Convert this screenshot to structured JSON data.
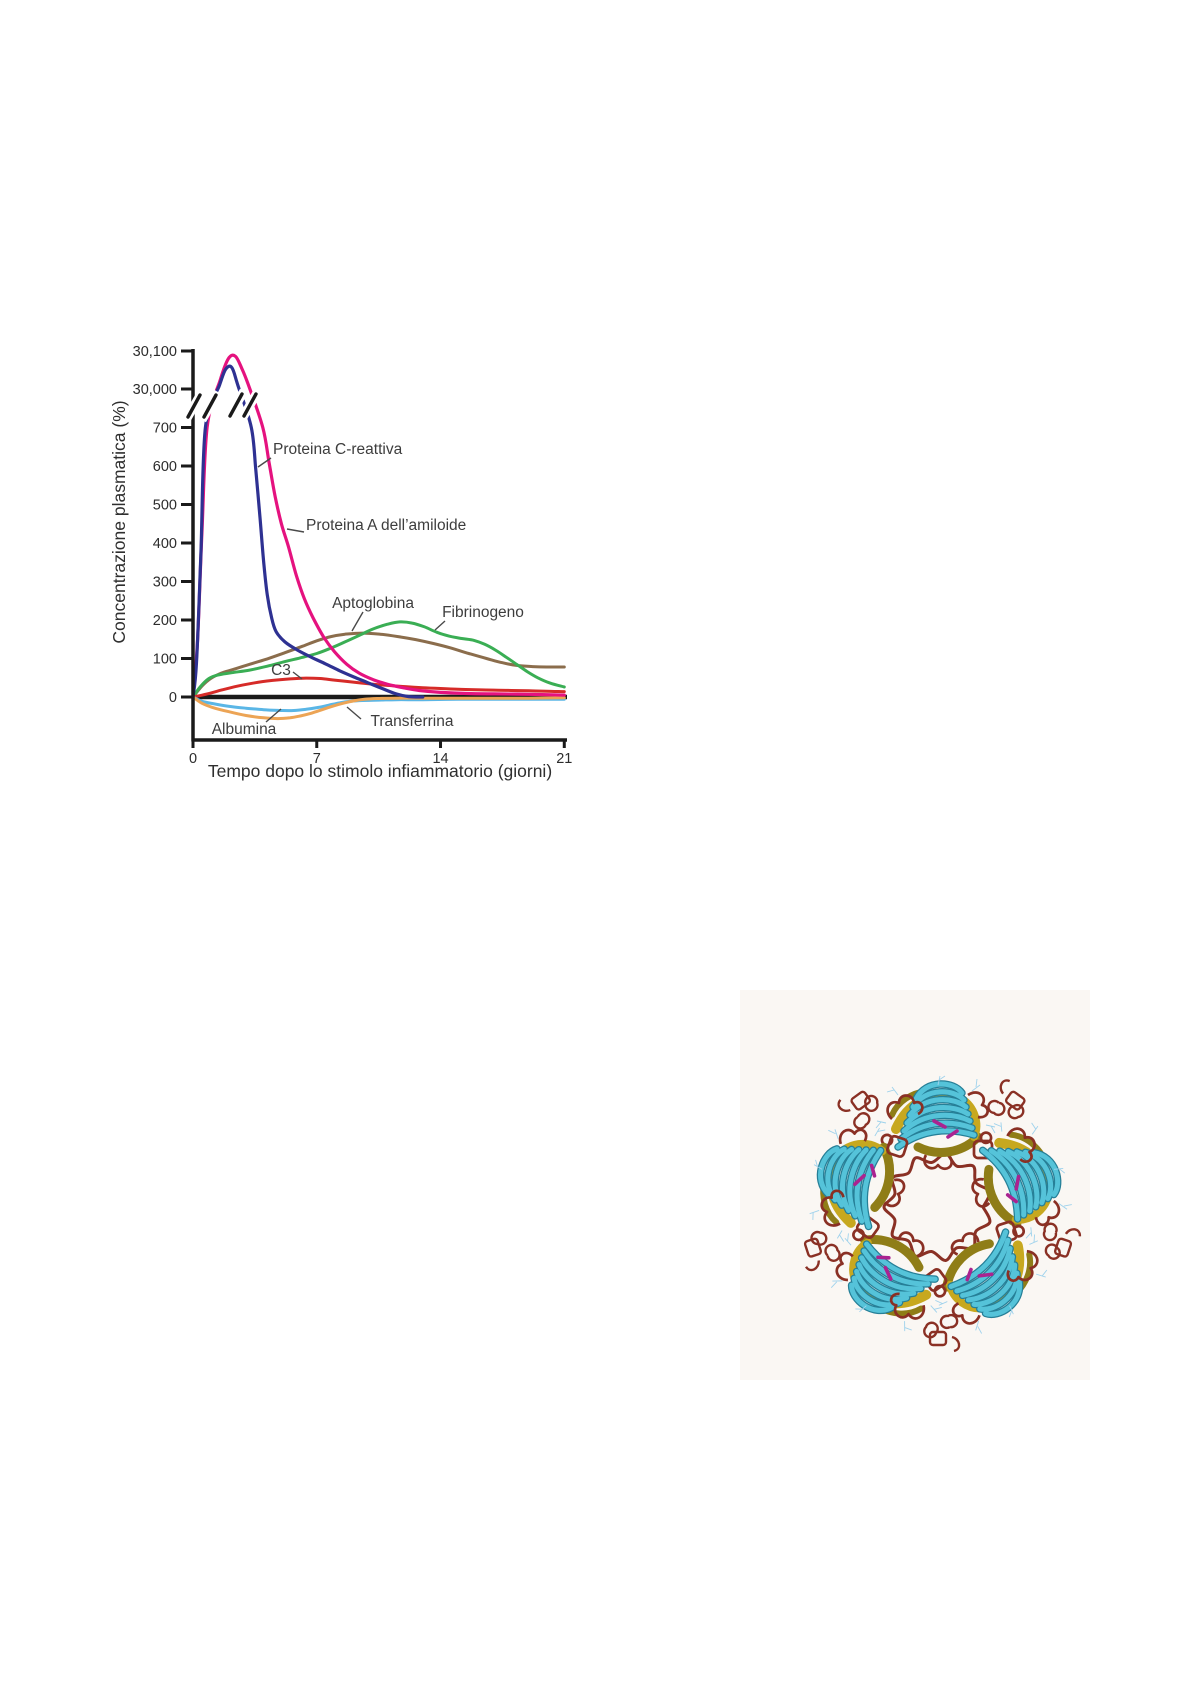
{
  "page": {
    "background": "#ffffff"
  },
  "chart_data": {
    "type": "line",
    "title": "",
    "xlabel": "Tempo dopo lo stimolo infiammatorio (giorni)",
    "ylabel": "Concentrazione plasmatica (%)",
    "x_ticks": [
      0,
      7,
      14,
      21
    ],
    "y_ticks_lower": [
      0,
      100,
      200,
      300,
      400,
      500,
      600,
      700
    ],
    "y_ticks_upper": [
      {
        "value": 30000,
        "label": "30,000"
      },
      {
        "value": 30100,
        "label": "30,100"
      }
    ],
    "axis_break": true,
    "x_range_days": [
      0,
      21
    ],
    "y_range_lower": [
      -110,
      720
    ],
    "y_range_upper": [
      30000,
      30100
    ],
    "grid": false,
    "legend": "inline-annotations",
    "series": [
      {
        "name": "Aptoglobina",
        "color": "#8b6d4c",
        "points": [
          [
            0,
            0
          ],
          [
            0.5,
            28
          ],
          [
            1,
            48
          ],
          [
            1.6,
            62
          ],
          [
            2.3,
            72
          ],
          [
            3.2,
            85
          ],
          [
            4.2,
            99
          ],
          [
            5.2,
            115
          ],
          [
            6.2,
            132
          ],
          [
            7,
            146
          ],
          [
            7.8,
            157
          ],
          [
            8.6,
            163
          ],
          [
            9.6,
            166
          ],
          [
            10.6,
            163
          ],
          [
            11.6,
            157
          ],
          [
            12.6,
            149
          ],
          [
            13.6,
            139
          ],
          [
            14.6,
            127
          ],
          [
            15.6,
            113
          ],
          [
            16.6,
            100
          ],
          [
            17.5,
            89
          ],
          [
            18.3,
            82
          ],
          [
            19.2,
            79
          ],
          [
            20,
            78
          ],
          [
            21,
            78
          ]
        ]
      },
      {
        "name": "Fibrinogeno",
        "color": "#3aae54",
        "points": [
          [
            0,
            0
          ],
          [
            0.4,
            26
          ],
          [
            0.9,
            48
          ],
          [
            1.4,
            57
          ],
          [
            2.2,
            63
          ],
          [
            3.2,
            70
          ],
          [
            4.2,
            80
          ],
          [
            5.2,
            92
          ],
          [
            6.2,
            103
          ],
          [
            7,
            113
          ],
          [
            7.8,
            127
          ],
          [
            8.6,
            143
          ],
          [
            9.4,
            160
          ],
          [
            10.2,
            177
          ],
          [
            11,
            189
          ],
          [
            11.7,
            195
          ],
          [
            12.4,
            192
          ],
          [
            13.1,
            182
          ],
          [
            13.8,
            168
          ],
          [
            14.5,
            158
          ],
          [
            15.2,
            152
          ],
          [
            15.9,
            147
          ],
          [
            16.5,
            137
          ],
          [
            17.1,
            122
          ],
          [
            17.7,
            104
          ],
          [
            18.3,
            85
          ],
          [
            18.9,
            66
          ],
          [
            19.5,
            50
          ],
          [
            20.2,
            36
          ],
          [
            21,
            26
          ]
        ]
      },
      {
        "name": "C3",
        "color": "#d62b28",
        "points": [
          [
            0,
            0
          ],
          [
            0.8,
            8
          ],
          [
            1.6,
            18
          ],
          [
            2.5,
            28
          ],
          [
            3.5,
            37
          ],
          [
            4.5,
            43
          ],
          [
            5.5,
            47
          ],
          [
            6.4,
            49
          ],
          [
            7.2,
            48
          ],
          [
            8,
            44
          ],
          [
            9,
            39
          ],
          [
            10,
            34
          ],
          [
            11,
            30
          ],
          [
            12,
            27
          ],
          [
            13,
            24
          ],
          [
            14,
            22
          ],
          [
            15,
            20
          ],
          [
            16,
            19
          ],
          [
            17,
            18
          ],
          [
            18,
            17
          ],
          [
            19,
            16
          ],
          [
            20,
            15
          ],
          [
            21,
            14
          ]
        ]
      },
      {
        "name": "Albumina",
        "color": "#5ab6e6",
        "points": [
          [
            0,
            0
          ],
          [
            0.5,
            -11
          ],
          [
            1.1,
            -17
          ],
          [
            2,
            -24
          ],
          [
            3,
            -29
          ],
          [
            4,
            -33
          ],
          [
            5,
            -35
          ],
          [
            5.7,
            -35
          ],
          [
            6.4,
            -32
          ],
          [
            7.1,
            -27
          ],
          [
            7.7,
            -21
          ],
          [
            8.3,
            -15
          ],
          [
            8.9,
            -11
          ],
          [
            9.6,
            -9
          ],
          [
            10.5,
            -8
          ],
          [
            11.5,
            -7
          ],
          [
            13,
            -7
          ],
          [
            15,
            -6
          ],
          [
            17,
            -6
          ],
          [
            19,
            -6
          ],
          [
            21,
            -6
          ]
        ]
      },
      {
        "name": "Transferrina",
        "color": "#eca455",
        "points": [
          [
            0,
            0
          ],
          [
            0.5,
            -16
          ],
          [
            1.1,
            -27
          ],
          [
            2,
            -38
          ],
          [
            3,
            -48
          ],
          [
            4,
            -54
          ],
          [
            4.8,
            -56
          ],
          [
            5.5,
            -54
          ],
          [
            6.1,
            -49
          ],
          [
            6.7,
            -42
          ],
          [
            7.3,
            -33
          ],
          [
            7.9,
            -24
          ],
          [
            8.5,
            -16
          ],
          [
            9.1,
            -10
          ],
          [
            9.7,
            -6
          ],
          [
            10.4,
            -4
          ],
          [
            11.5,
            -3
          ],
          [
            13,
            -3
          ],
          [
            15,
            -3
          ],
          [
            17,
            -3
          ],
          [
            19,
            -3
          ],
          [
            21,
            -2
          ]
        ]
      },
      {
        "name": "Proteina A dell’amiloide",
        "color": "#e5127f",
        "points": [
          [
            0,
            0
          ],
          [
            0.25,
            140
          ],
          [
            0.5,
            420
          ],
          [
            0.8,
            700
          ],
          [
            1.55,
            30025
          ],
          [
            2,
            30080
          ],
          [
            2.4,
            30086
          ],
          [
            2.8,
            30050
          ],
          [
            3.2,
            30002
          ],
          [
            3.95,
            700
          ],
          [
            4.3,
            610
          ],
          [
            4.65,
            520
          ],
          [
            5,
            450
          ],
          [
            5.4,
            390
          ],
          [
            5.85,
            315
          ],
          [
            6.3,
            255
          ],
          [
            6.8,
            205
          ],
          [
            7.4,
            155
          ],
          [
            8,
            118
          ],
          [
            8.7,
            85
          ],
          [
            9.4,
            62
          ],
          [
            10.2,
            45
          ],
          [
            11,
            33
          ],
          [
            11.9,
            24
          ],
          [
            12.8,
            17
          ],
          [
            14,
            12
          ],
          [
            15.5,
            9
          ],
          [
            17,
            8
          ],
          [
            19,
            7
          ],
          [
            21,
            5
          ]
        ]
      },
      {
        "name": "Proteina C-reattiva",
        "color": "#2e3192",
        "points": [
          [
            0,
            0
          ],
          [
            0.2,
            90
          ],
          [
            0.45,
            380
          ],
          [
            0.7,
            700
          ],
          [
            1.5,
            30010
          ],
          [
            1.85,
            30052
          ],
          [
            2.2,
            30056
          ],
          [
            2.55,
            30008
          ],
          [
            3.3,
            700
          ],
          [
            3.55,
            590
          ],
          [
            3.8,
            460
          ],
          [
            4,
            350
          ],
          [
            4.2,
            265
          ],
          [
            4.45,
            205
          ],
          [
            4.7,
            170
          ],
          [
            5.2,
            143
          ],
          [
            5.9,
            122
          ],
          [
            6.7,
            103
          ],
          [
            7.5,
            86
          ],
          [
            8.3,
            68
          ],
          [
            9.1,
            52
          ],
          [
            9.9,
            37
          ],
          [
            10.7,
            22
          ],
          [
            11.5,
            8
          ],
          [
            12.2,
            1
          ],
          [
            13,
            0
          ]
        ]
      }
    ],
    "annotations": [
      {
        "text": "Proteina C-reattiva",
        "x": 178,
        "y": 139,
        "anchor": "start",
        "leader": [
          176,
          143,
          163,
          152
        ]
      },
      {
        "text": "Proteina A dell’amiloide",
        "x": 211,
        "y": 215,
        "anchor": "start",
        "leader": [
          209,
          217,
          192,
          214
        ]
      },
      {
        "text": "Aptoglobina",
        "x": 278,
        "y": 293,
        "anchor": "middle",
        "leader": [
          268,
          297,
          257,
          316
        ]
      },
      {
        "text": "Fibrinogeno",
        "x": 388,
        "y": 302,
        "anchor": "middle",
        "leader": [
          350,
          306,
          340,
          315
        ]
      },
      {
        "text": "C3",
        "x": 186,
        "y": 360,
        "anchor": "middle",
        "leader": [
          198,
          357,
          207,
          364
        ]
      },
      {
        "text": "Albumina",
        "x": 149,
        "y": 419,
        "anchor": "middle",
        "leader": [
          171,
          407,
          186,
          394
        ]
      },
      {
        "text": "Transferrina",
        "x": 317,
        "y": 411,
        "anchor": "middle",
        "leader": [
          266,
          404,
          252,
          392
        ]
      }
    ]
  },
  "molecule_figure": {
    "subject": "pentameric-protein-ribbon-structure",
    "subunit_count": 5,
    "colors": {
      "background": "#faf7f3",
      "sheet_cyan": "#55c3d9",
      "sheet_cyan_edge": "#267f97",
      "strand_yellow": "#c7a81f",
      "strand_olive": "#8f7d17",
      "loop_maroon": "#8a3024",
      "accent_magenta": "#aa2390",
      "hair_blue": "#9fd2ec"
    }
  }
}
